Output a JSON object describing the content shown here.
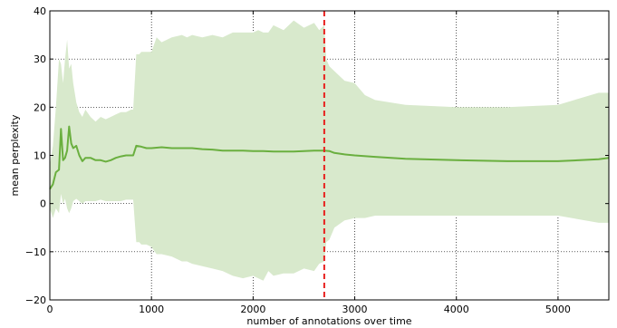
{
  "chart_data": {
    "type": "line",
    "xlabel": "number of annotations over time",
    "ylabel": "mean perplexity",
    "xlim": [
      0,
      5500
    ],
    "ylim": [
      -20,
      40
    ],
    "xticks": [
      0,
      1000,
      2000,
      3000,
      4000,
      5000
    ],
    "yticks": [
      -20,
      -10,
      0,
      10,
      20,
      30,
      40
    ],
    "xtick_labels": [
      "0",
      "1000",
      "2000",
      "3000",
      "4000",
      "5000"
    ],
    "ytick_labels": [
      "−20",
      "−10",
      "0",
      "10",
      "20",
      "30",
      "40"
    ],
    "grid": true,
    "colors": {
      "line": "#6aaf3f",
      "band": "#d8e9cc",
      "vline": "#e8201e"
    },
    "vline_x": 2700,
    "series": [
      {
        "kind": "mean-line",
        "x": [
          0,
          30,
          60,
          90,
          110,
          130,
          150,
          170,
          190,
          210,
          230,
          260,
          290,
          320,
          350,
          400,
          450,
          500,
          550,
          600,
          650,
          700,
          750,
          800,
          820,
          850,
          900,
          950,
          1000,
          1100,
          1200,
          1300,
          1400,
          1500,
          1600,
          1700,
          1800,
          1900,
          2000,
          2100,
          2200,
          2300,
          2400,
          2500,
          2600,
          2700,
          2750,
          2800,
          2900,
          3000,
          3200,
          3500,
          4000,
          4500,
          5000,
          5400,
          5500
        ],
        "y": [
          3,
          4,
          6.5,
          7,
          15.5,
          9,
          9.5,
          11,
          16,
          12.5,
          11.5,
          12,
          10,
          8.8,
          9.5,
          9.5,
          9,
          9,
          8.7,
          9,
          9.5,
          9.8,
          10,
          10,
          10,
          12,
          11.8,
          11.5,
          11.5,
          11.7,
          11.5,
          11.5,
          11.5,
          11.3,
          11.2,
          11,
          11,
          11,
          10.9,
          10.9,
          10.8,
          10.8,
          10.8,
          10.9,
          11,
          11,
          10.9,
          10.5,
          10.2,
          10,
          9.7,
          9.3,
          9,
          8.8,
          8.8,
          9.2,
          9.5
        ]
      },
      {
        "kind": "band-upper",
        "x": [
          0,
          30,
          60,
          90,
          110,
          130,
          150,
          170,
          190,
          210,
          230,
          260,
          290,
          320,
          350,
          400,
          450,
          500,
          550,
          600,
          650,
          700,
          750,
          800,
          820,
          850,
          880,
          900,
          950,
          1000,
          1050,
          1100,
          1200,
          1300,
          1350,
          1400,
          1500,
          1600,
          1700,
          1800,
          1900,
          2000,
          2050,
          2100,
          2150,
          2200,
          2300,
          2400,
          2500,
          2600,
          2650,
          2700,
          2720,
          2750,
          2800,
          2900,
          3000,
          3100,
          3200,
          3500,
          4000,
          4500,
          5000,
          5400,
          5500
        ],
        "y": [
          8,
          12,
          20,
          30,
          29,
          25,
          30,
          34,
          28,
          29,
          25,
          21,
          19,
          18,
          19.5,
          18,
          17,
          18,
          17.5,
          18,
          18.5,
          19,
          19,
          19.5,
          19.5,
          31,
          31,
          31.5,
          31.5,
          31.5,
          34.5,
          33.5,
          34.5,
          35,
          34.5,
          35,
          34.5,
          35,
          34.5,
          35.5,
          35.5,
          35.5,
          36,
          35.5,
          35.5,
          37,
          36,
          38,
          36.5,
          37.5,
          36,
          37,
          30,
          28.5,
          27.5,
          25.5,
          25,
          22.5,
          21.5,
          20.5,
          20,
          20,
          20.5,
          23,
          23
        ]
      },
      {
        "kind": "band-lower",
        "x": [
          0,
          30,
          60,
          90,
          110,
          130,
          150,
          170,
          190,
          210,
          230,
          260,
          290,
          320,
          350,
          400,
          450,
          500,
          550,
          600,
          650,
          700,
          750,
          800,
          820,
          850,
          880,
          900,
          950,
          1000,
          1050,
          1100,
          1200,
          1300,
          1350,
          1400,
          1500,
          1600,
          1700,
          1800,
          1900,
          2000,
          2050,
          2100,
          2150,
          2200,
          2300,
          2400,
          2500,
          2600,
          2650,
          2700,
          2720,
          2750,
          2800,
          2900,
          3000,
          3100,
          3200,
          3500,
          4000,
          4500,
          5000,
          5400,
          5500
        ],
        "y": [
          -1,
          -3,
          -1,
          -2,
          2,
          0,
          1,
          -1,
          -2,
          -1,
          0.5,
          1,
          0.5,
          0,
          0.5,
          0.5,
          0.5,
          0.8,
          0.5,
          0.5,
          0.5,
          0.5,
          0.8,
          0.8,
          0.8,
          -8,
          -8,
          -8.5,
          -8.5,
          -9,
          -10.5,
          -10.5,
          -11,
          -12,
          -12,
          -12.5,
          -13,
          -13.5,
          -14,
          -15,
          -15.5,
          -15,
          -15.5,
          -16,
          -14,
          -15,
          -14.5,
          -14.5,
          -13.5,
          -14,
          -12.5,
          -12,
          -8,
          -7.5,
          -5,
          -3.5,
          -3,
          -3,
          -2.5,
          -2.5,
          -2.5,
          -2.5,
          -2.5,
          -4,
          -4
        ]
      }
    ]
  }
}
